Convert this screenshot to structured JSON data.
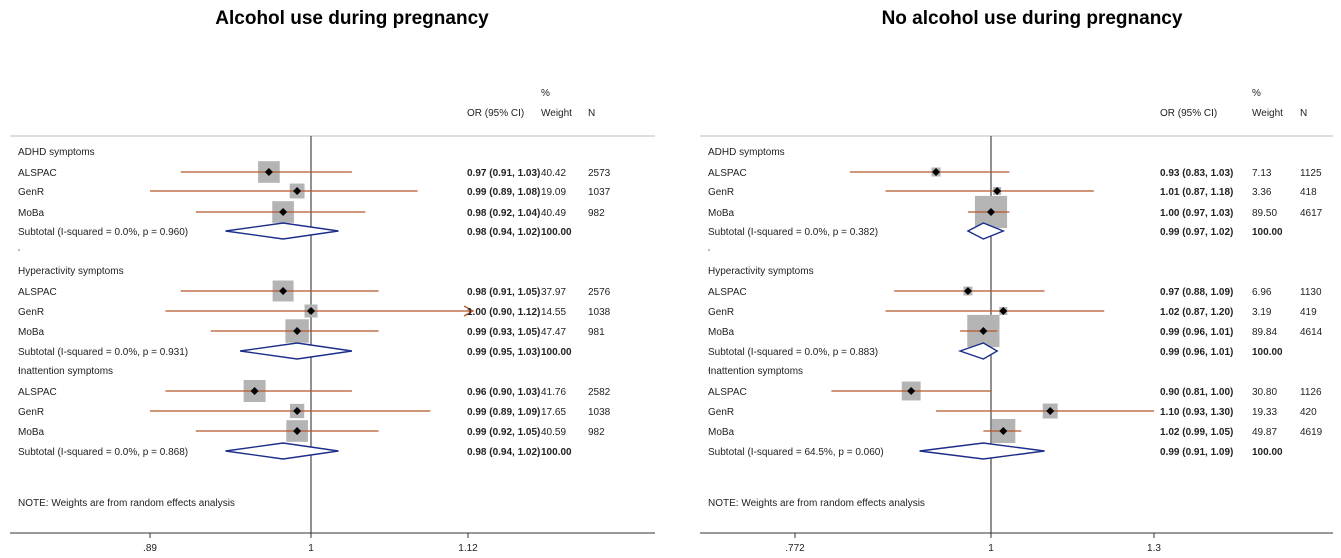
{
  "chart_data": [
    {
      "type": "forest",
      "title": "Alcohol use during pregnancy",
      "header": {
        "or_label": "OR (95% CI)",
        "weight_label_top": "%",
        "weight_label": "Weight",
        "n_label": "N"
      },
      "xlim": [
        0.89,
        1.12
      ],
      "log_scale": true,
      "xticks": [
        0.89,
        1,
        1.12
      ],
      "xtick_labels": [
        ".89",
        "1",
        "1.12"
      ],
      "note": "NOTE: Weights are from random effects analysis",
      "groups": [
        {
          "label": "ADHD symptoms",
          "studies": [
            {
              "name": "ALSPAC",
              "or": 0.97,
              "lo": 0.91,
              "hi": 1.03,
              "ci_text": "0.97 (0.91, 1.03)",
              "weight": "40.42",
              "n": "2573"
            },
            {
              "name": "GenR",
              "or": 0.99,
              "lo": 0.89,
              "hi": 1.08,
              "ci_text": "0.99 (0.89, 1.08)",
              "weight": "19.09",
              "n": "1037"
            },
            {
              "name": "MoBa",
              "or": 0.98,
              "lo": 0.92,
              "hi": 1.04,
              "ci_text": "0.98 (0.92, 1.04)",
              "weight": "40.49",
              "n": "982"
            }
          ],
          "subtotal": {
            "label": "Subtotal  (I-squared = 0.0%, p = 0.960)",
            "or": 0.98,
            "lo": 0.94,
            "hi": 1.02,
            "ci_text": "0.98 (0.94, 1.02)",
            "weight": "100.00"
          }
        },
        {
          "label": "Hyperactivity symptoms",
          "studies": [
            {
              "name": "ALSPAC",
              "or": 0.98,
              "lo": 0.91,
              "hi": 1.05,
              "ci_text": "0.98 (0.91, 1.05)",
              "weight": "37.97",
              "n": "2576"
            },
            {
              "name": "GenR",
              "or": 1.0,
              "lo": 0.9,
              "hi": 1.12,
              "ci_text": "1.00 (0.90, 1.12)",
              "weight": "14.55",
              "n": "1038",
              "arrow": true
            },
            {
              "name": "MoBa",
              "or": 0.99,
              "lo": 0.93,
              "hi": 1.05,
              "ci_text": "0.99 (0.93, 1.05)",
              "weight": "47.47",
              "n": "981"
            }
          ],
          "subtotal": {
            "label": "Subtotal  (I-squared = 0.0%, p = 0.931)",
            "or": 0.99,
            "lo": 0.95,
            "hi": 1.03,
            "ci_text": "0.99 (0.95, 1.03)",
            "weight": "100.00"
          }
        },
        {
          "label": "Inattention symptoms",
          "studies": [
            {
              "name": "ALSPAC",
              "or": 0.96,
              "lo": 0.9,
              "hi": 1.03,
              "ci_text": "0.96 (0.90, 1.03)",
              "weight": "41.76",
              "n": "2582"
            },
            {
              "name": "GenR",
              "or": 0.99,
              "lo": 0.89,
              "hi": 1.09,
              "ci_text": "0.99 (0.89, 1.09)",
              "weight": "17.65",
              "n": "1038"
            },
            {
              "name": "MoBa",
              "or": 0.99,
              "lo": 0.92,
              "hi": 1.05,
              "ci_text": "0.99 (0.92, 1.05)",
              "weight": "40.59",
              "n": "982"
            }
          ],
          "subtotal": {
            "label": "Subtotal  (I-squared = 0.0%, p = 0.868)",
            "or": 0.98,
            "lo": 0.94,
            "hi": 1.02,
            "ci_text": "0.98 (0.94, 1.02)",
            "weight": "100.00"
          }
        }
      ]
    },
    {
      "type": "forest",
      "title": "No alcohol use during pregnancy",
      "header": {
        "or_label": "OR (95% CI)",
        "weight_label_top": "%",
        "weight_label": "Weight",
        "n_label": "N"
      },
      "xlim": [
        0.772,
        1.3
      ],
      "log_scale": true,
      "xticks": [
        0.772,
        1,
        1.3
      ],
      "xtick_labels": [
        ".772",
        "1",
        "1.3"
      ],
      "note": "NOTE: Weights are from random effects analysis",
      "groups": [
        {
          "label": "ADHD symptoms",
          "studies": [
            {
              "name": "ALSPAC",
              "or": 0.93,
              "lo": 0.83,
              "hi": 1.03,
              "ci_text": "0.93 (0.83, 1.03)",
              "weight": "7.13",
              "n": "1125"
            },
            {
              "name": "GenR",
              "or": 1.01,
              "lo": 0.87,
              "hi": 1.18,
              "ci_text": "1.01 (0.87, 1.18)",
              "weight": "3.36",
              "n": "418"
            },
            {
              "name": "MoBa",
              "or": 1.0,
              "lo": 0.97,
              "hi": 1.03,
              "ci_text": "1.00 (0.97, 1.03)",
              "weight": "89.50",
              "n": "4617"
            }
          ],
          "subtotal": {
            "label": "Subtotal  (I-squared = 0.0%, p = 0.382)",
            "or": 0.99,
            "lo": 0.97,
            "hi": 1.02,
            "ci_text": "0.99 (0.97, 1.02)",
            "weight": "100.00"
          }
        },
        {
          "label": "Hyperactivity symptoms",
          "studies": [
            {
              "name": "ALSPAC",
              "or": 0.97,
              "lo": 0.88,
              "hi": 1.09,
              "ci_text": "0.97 (0.88, 1.09)",
              "weight": "6.96",
              "n": "1130"
            },
            {
              "name": "GenR",
              "or": 1.02,
              "lo": 0.87,
              "hi": 1.2,
              "ci_text": "1.02 (0.87, 1.20)",
              "weight": "3.19",
              "n": "419"
            },
            {
              "name": "MoBa",
              "or": 0.99,
              "lo": 0.96,
              "hi": 1.01,
              "ci_text": "0.99 (0.96, 1.01)",
              "weight": "89.84",
              "n": "4614"
            }
          ],
          "subtotal": {
            "label": "Subtotal  (I-squared = 0.0%, p = 0.883)",
            "or": 0.99,
            "lo": 0.96,
            "hi": 1.01,
            "ci_text": "0.99 (0.96, 1.01)",
            "weight": "100.00"
          }
        },
        {
          "label": "Inattention symptoms",
          "studies": [
            {
              "name": "ALSPAC",
              "or": 0.9,
              "lo": 0.81,
              "hi": 1.0,
              "ci_text": "0.90 (0.81, 1.00)",
              "weight": "30.80",
              "n": "1126"
            },
            {
              "name": "GenR",
              "or": 1.1,
              "lo": 0.93,
              "hi": 1.3,
              "ci_text": "1.10 (0.93, 1.30)",
              "weight": "19.33",
              "n": "420"
            },
            {
              "name": "MoBa",
              "or": 1.02,
              "lo": 0.99,
              "hi": 1.05,
              "ci_text": "1.02 (0.99, 1.05)",
              "weight": "49.87",
              "n": "4619"
            }
          ],
          "subtotal": {
            "label": "Subtotal  (I-squared = 64.5%, p = 0.060)",
            "or": 0.99,
            "lo": 0.91,
            "hi": 1.09,
            "ci_text": "0.99 (0.91, 1.09)",
            "weight": "100.00"
          }
        }
      ]
    }
  ],
  "colors": {
    "ci_line": "#b5582a",
    "weight_box": "#b4b4b4",
    "diamond": "#1c2d8a",
    "point": "#000000",
    "axis": "#333333"
  }
}
